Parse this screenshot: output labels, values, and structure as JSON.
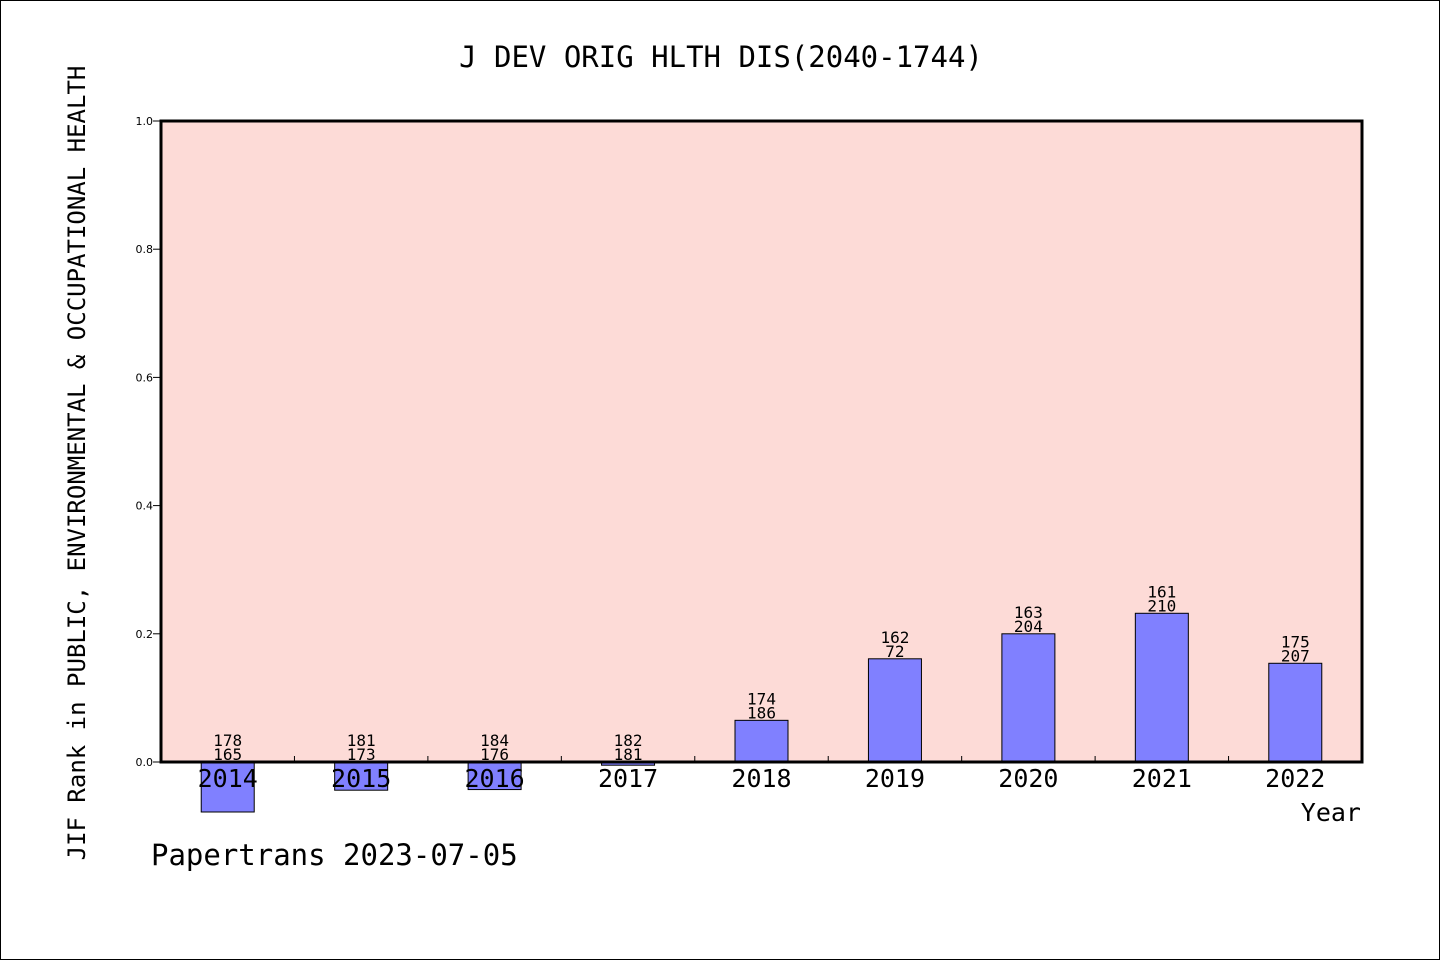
{
  "chart_data": {
    "type": "bar",
    "title": "J DEV ORIG HLTH DIS(2040-1744)",
    "xlabel": "Year",
    "ylabel": "JIF Rank in PUBLIC, ENVIRONMENTAL & OCCUPATIONAL HEALTH",
    "footer": "Papertrans 2023-07-05",
    "ylim": [
      0,
      1.0
    ],
    "yticks": [
      "0.0",
      "0.2",
      "0.4",
      "0.6",
      "0.8",
      "1.0"
    ],
    "categories": [
      "2014",
      "2015",
      "2016",
      "2017",
      "2018",
      "2019",
      "2020",
      "2021",
      "2022"
    ],
    "values": [
      -0.078,
      -0.044,
      -0.043,
      -0.005,
      0.065,
      0.161,
      0.2,
      0.232,
      0.154
    ],
    "labels_top": [
      "178",
      "181",
      "184",
      "182",
      "174",
      "162",
      "163",
      "161",
      "175"
    ],
    "labels_bottom": [
      "165",
      "173",
      "176",
      "181",
      "186",
      "72",
      "204",
      "210",
      "207"
    ],
    "grid": false,
    "colors": {
      "plot_background": "#fddbd7",
      "bar_fill": "#8080ff",
      "bar_stroke": "#000000"
    }
  }
}
